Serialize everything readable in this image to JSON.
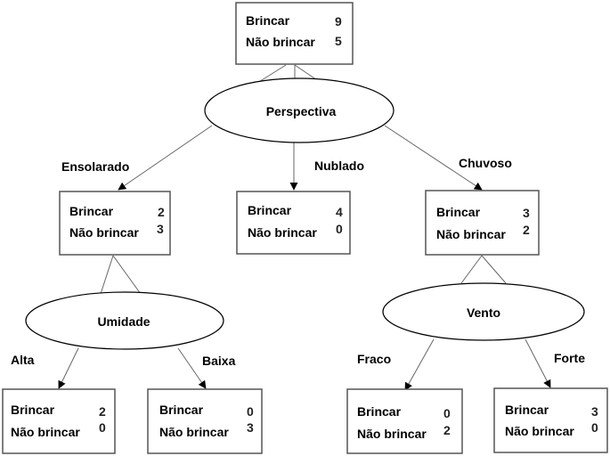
{
  "nodes": {
    "root": {
      "row1_label": "Brincar",
      "row1_value": "9",
      "row2_label": "Não brincar",
      "row2_value": "5"
    },
    "sunny": {
      "row1_label": "Brincar",
      "row1_value": "2",
      "row2_label": "Não brincar",
      "row2_value": "3"
    },
    "cloudy": {
      "row1_label": "Brincar",
      "row1_value": "4",
      "row2_label": "Não brincar",
      "row2_value": "0"
    },
    "rainy": {
      "row1_label": "Brincar",
      "row1_value": "3",
      "row2_label": "Não brincar",
      "row2_value": "2"
    },
    "humidity_high": {
      "row1_label": "Brincar",
      "row1_value": "2",
      "row2_label": "Não brincar",
      "row2_value": "0"
    },
    "humidity_low": {
      "row1_label": "Brincar",
      "row1_value": "0",
      "row2_label": "Não brincar",
      "row2_value": "3"
    },
    "wind_weak": {
      "row1_label": "Brincar",
      "row1_value": "0",
      "row2_label": "Não brincar",
      "row2_value": "2"
    },
    "wind_strong": {
      "row1_label": "Brincar",
      "row1_value": "3",
      "row2_label": "Não brincar",
      "row2_value": "0"
    }
  },
  "attributes": {
    "outlook": "Perspectiva",
    "humidity": "Umidade",
    "wind": "Vento"
  },
  "edges": {
    "sunny": "Ensolarado",
    "cloudy": "Nublado",
    "rainy": "Chuvoso",
    "high": "Alta",
    "low": "Baixa",
    "weak": "Fraco",
    "strong": "Forte"
  }
}
